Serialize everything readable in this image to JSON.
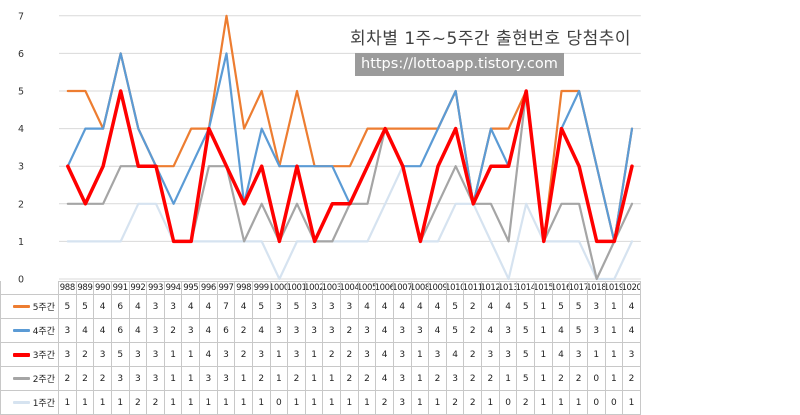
{
  "chart_data": {
    "type": "line",
    "title": "회차별 1주~5주간 출현번호 당첨추이",
    "subtitle": "https://lottoapp.tistory.com",
    "ylim": [
      0,
      7
    ],
    "yticks": [
      "0",
      "1",
      "2",
      "3",
      "4",
      "5",
      "6",
      "7"
    ],
    "categories": [
      "988",
      "989",
      "990",
      "991",
      "992",
      "993",
      "994",
      "995",
      "996",
      "997",
      "998",
      "999",
      "1000",
      "1001",
      "1002",
      "1003",
      "1004",
      "1005",
      "1006",
      "1007",
      "1008",
      "1009",
      "1010",
      "1011",
      "1012",
      "1013",
      "1014",
      "1015",
      "1016",
      "1017",
      "1018",
      "1019",
      "1020"
    ],
    "series": [
      {
        "name": "5주간",
        "color": "#ED7D31",
        "width": 2.2,
        "values": [
          5,
          5,
          4,
          6,
          4,
          3,
          3,
          4,
          4,
          7,
          4,
          5,
          3,
          5,
          3,
          3,
          3,
          4,
          4,
          4,
          4,
          4,
          5,
          2,
          4,
          4,
          5,
          1,
          5,
          5,
          3,
          1,
          4
        ]
      },
      {
        "name": "4주간",
        "color": "#5B9BD5",
        "width": 2.2,
        "values": [
          3,
          4,
          4,
          6,
          4,
          3,
          2,
          3,
          4,
          6,
          2,
          4,
          3,
          3,
          3,
          3,
          2,
          3,
          4,
          3,
          3,
          4,
          5,
          2,
          4,
          3,
          5,
          1,
          4,
          5,
          3,
          1,
          4
        ]
      },
      {
        "name": "3주간",
        "color": "#FF0000",
        "width": 3.5,
        "values": [
          3,
          2,
          3,
          5,
          3,
          3,
          1,
          1,
          4,
          3,
          2,
          3,
          1,
          3,
          1,
          2,
          2,
          3,
          4,
          3,
          1,
          3,
          4,
          2,
          3,
          3,
          5,
          1,
          4,
          3,
          1,
          1,
          3
        ]
      },
      {
        "name": "2주간",
        "color": "#A5A5A5",
        "width": 2.2,
        "values": [
          2,
          2,
          2,
          3,
          3,
          3,
          1,
          1,
          3,
          3,
          1,
          2,
          1,
          2,
          1,
          1,
          2,
          2,
          4,
          3,
          1,
          2,
          3,
          2,
          2,
          1,
          5,
          1,
          2,
          2,
          0,
          1,
          2
        ]
      },
      {
        "name": "1주간",
        "color": "#D6E3F0",
        "width": 2.2,
        "values": [
          1,
          1,
          1,
          1,
          2,
          2,
          1,
          1,
          1,
          1,
          1,
          1,
          0,
          1,
          1,
          1,
          1,
          1,
          2,
          3,
          1,
          1,
          2,
          2,
          1,
          0,
          2,
          1,
          1,
          1,
          0,
          0,
          1
        ]
      }
    ]
  }
}
